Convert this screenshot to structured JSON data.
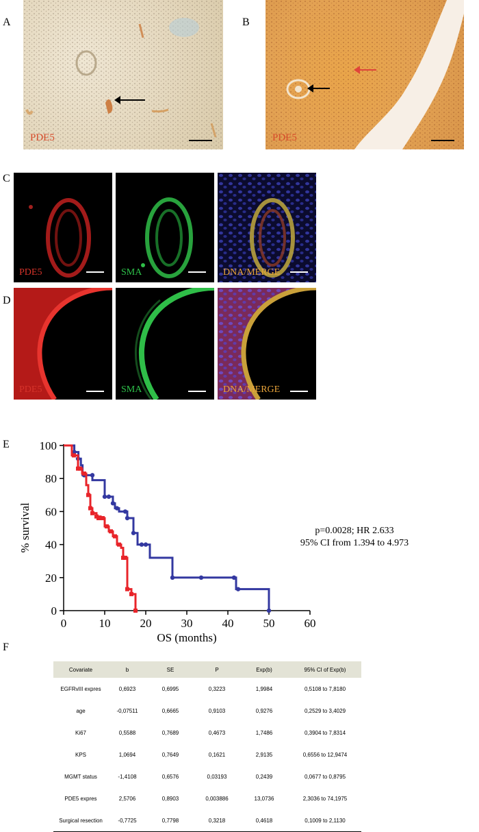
{
  "panels": {
    "a": {
      "letter": "A",
      "stain_label": "PDE5"
    },
    "b": {
      "letter": "B",
      "stain_label": "PDE5"
    },
    "c": {
      "letter": "C",
      "labels": [
        "PDE5",
        "SMA",
        "DNA/MERGE"
      ]
    },
    "d": {
      "letter": "D",
      "labels": [
        "PDE5",
        "SMA",
        "DNA/MERGE"
      ]
    },
    "e": {
      "letter": "E"
    },
    "f": {
      "letter": "F"
    }
  },
  "colors": {
    "red_series": "#e8242a",
    "blue_series": "#3338a0",
    "pde5_label": "#d64a2a",
    "sma_label": "#2ec24a",
    "merge_label": "#e9a43a"
  },
  "chart_data": {
    "type": "line",
    "subtype": "kaplan-meier step",
    "xlabel": "OS (months)",
    "ylabel": "% survival",
    "xlim": [
      0,
      60
    ],
    "ylim": [
      0,
      100
    ],
    "xticks": [
      "0",
      "10",
      "20",
      "30",
      "40",
      "50",
      "60"
    ],
    "yticks": [
      "0",
      "20",
      "40",
      "60",
      "80",
      "100"
    ],
    "annotation_line1": "p=0.0028; HR 2.633",
    "annotation_line2": "95% CI from 1.394 to 4.973",
    "series": [
      {
        "color": "#3338a0",
        "steps": [
          [
            0,
            100
          ],
          [
            2.6,
            100
          ],
          [
            2.6,
            96
          ],
          [
            3.6,
            96
          ],
          [
            3.6,
            92
          ],
          [
            4.2,
            92
          ],
          [
            4.2,
            88
          ],
          [
            4.6,
            88
          ],
          [
            4.6,
            82
          ],
          [
            7,
            82
          ],
          [
            7,
            79
          ],
          [
            10,
            79
          ],
          [
            10,
            69
          ],
          [
            12,
            69
          ],
          [
            12,
            65
          ],
          [
            12.5,
            65
          ],
          [
            12.5,
            62
          ],
          [
            13.5,
            62
          ],
          [
            13.5,
            60
          ],
          [
            15.5,
            60
          ],
          [
            15.5,
            56
          ],
          [
            17,
            56
          ],
          [
            17,
            47
          ],
          [
            18,
            47
          ],
          [
            18,
            40
          ],
          [
            21,
            40
          ],
          [
            21,
            32
          ],
          [
            26.5,
            32
          ],
          [
            26.5,
            20
          ],
          [
            42,
            20
          ],
          [
            42,
            13
          ],
          [
            50,
            13
          ],
          [
            50,
            0
          ]
        ],
        "censor_points": [
          [
            2.6,
            96
          ],
          [
            3.5,
            92
          ],
          [
            5,
            82
          ],
          [
            7,
            82
          ],
          [
            10,
            69
          ],
          [
            11,
            69
          ],
          [
            12,
            65
          ],
          [
            13,
            62
          ],
          [
            15,
            60
          ],
          [
            15.5,
            56
          ],
          [
            17,
            47
          ],
          [
            19,
            40
          ],
          [
            20,
            40
          ],
          [
            26.5,
            20
          ],
          [
            33.5,
            20
          ],
          [
            41.5,
            20
          ],
          [
            42.5,
            13
          ],
          [
            50,
            0
          ]
        ]
      },
      {
        "color": "#e8242a",
        "steps": [
          [
            0,
            100
          ],
          [
            2,
            100
          ],
          [
            2,
            94
          ],
          [
            3.5,
            94
          ],
          [
            3.5,
            86
          ],
          [
            4.5,
            86
          ],
          [
            4.5,
            83
          ],
          [
            5.5,
            83
          ],
          [
            5.5,
            76
          ],
          [
            6,
            76
          ],
          [
            6,
            70
          ],
          [
            6.5,
            70
          ],
          [
            6.5,
            62
          ],
          [
            7,
            62
          ],
          [
            7,
            59
          ],
          [
            8,
            59
          ],
          [
            8,
            57
          ],
          [
            9,
            57
          ],
          [
            9,
            56
          ],
          [
            10,
            56
          ],
          [
            10,
            51
          ],
          [
            11,
            51
          ],
          [
            11,
            48
          ],
          [
            12,
            48
          ],
          [
            12,
            45
          ],
          [
            13,
            45
          ],
          [
            13,
            40
          ],
          [
            14,
            40
          ],
          [
            14,
            38
          ],
          [
            14.5,
            38
          ],
          [
            14.5,
            32
          ],
          [
            15.5,
            32
          ],
          [
            15.5,
            13
          ],
          [
            16.5,
            13
          ],
          [
            16.5,
            10
          ],
          [
            17.5,
            10
          ],
          [
            17.5,
            0
          ]
        ],
        "censor_points": [
          [
            2.5,
            94
          ],
          [
            3.5,
            86
          ],
          [
            4,
            86
          ],
          [
            5,
            83
          ],
          [
            6,
            70
          ],
          [
            6.5,
            62
          ],
          [
            7,
            59
          ],
          [
            8,
            57
          ],
          [
            8.5,
            56
          ],
          [
            9.5,
            56
          ],
          [
            10.5,
            51
          ],
          [
            11.5,
            48
          ],
          [
            12.5,
            45
          ],
          [
            13.5,
            40
          ],
          [
            14.5,
            32
          ],
          [
            15,
            32
          ],
          [
            15.5,
            13
          ],
          [
            16.5,
            10
          ],
          [
            17.5,
            0
          ]
        ]
      }
    ]
  },
  "cox_table": {
    "headers": [
      "Covariate",
      "b",
      "SE",
      "P",
      "Exp(b)",
      "95% CI of Exp(b)"
    ],
    "rows": [
      [
        "EGFRvIII expres",
        "0,6923",
        "0,6995",
        "0,3223",
        "1,9984",
        "0,5108 to 7,8180"
      ],
      [
        "age",
        "-0,07511",
        "0,6665",
        "0,9103",
        "0,9276",
        "0,2529 to 3,4029"
      ],
      [
        "Ki67",
        "0,5588",
        "0,7689",
        "0,4673",
        "1,7486",
        "0,3904 to 7,8314"
      ],
      [
        "KPS",
        "1,0694",
        "0,7649",
        "0,1621",
        "2,9135",
        "0,6556 to 12,9474"
      ],
      [
        "MGMT status",
        "-1,4108",
        "0,6576",
        "0,03193",
        "0,2439",
        "0,0677 to 0,8795"
      ],
      [
        "PDE5 expres",
        "2,5706",
        "0,8903",
        "0,003886",
        "13,0736",
        "2,3036 to 74,1975"
      ],
      [
        "Surgical resection",
        "-0,7725",
        "0,7798",
        "0,3218",
        "0,4618",
        "0,1009 to 2,1130"
      ]
    ]
  }
}
